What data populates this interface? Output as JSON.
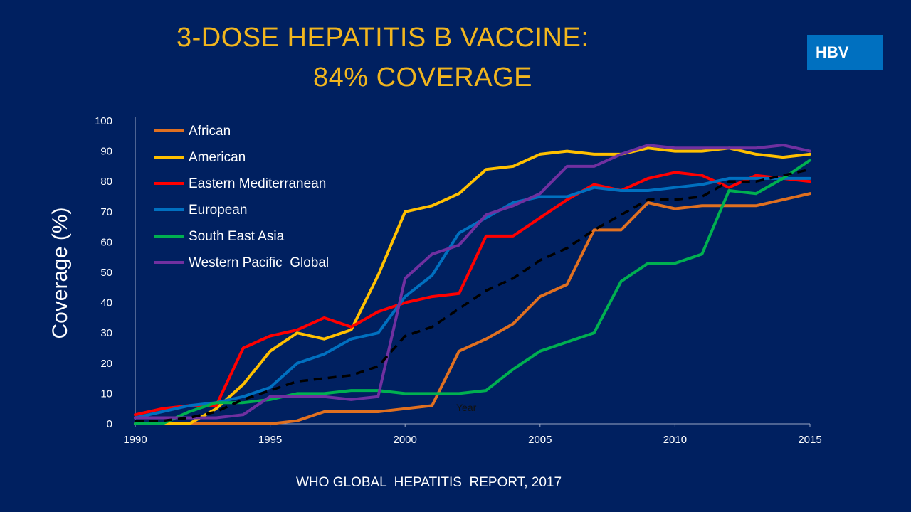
{
  "slide": {
    "title_line1": "3-DOSE HEPATITIS B VACCINE:",
    "title_line2": "84% COVERAGE",
    "badge": "HBV",
    "source": "WHO GLOBAL  HEPATITIS  REPORT, 2017"
  },
  "chart_data": {
    "type": "line",
    "ylabel": "Coverage (%)",
    "annotation": "Year",
    "xlim": [
      1990,
      2015
    ],
    "ylim": [
      0,
      100
    ],
    "x_ticks": [
      1990,
      1995,
      2000,
      2005,
      2010,
      2015
    ],
    "y_ticks": [
      0,
      10,
      20,
      30,
      40,
      50,
      60,
      70,
      80,
      90,
      100
    ],
    "grid": false,
    "legend_position": "top-left",
    "x": [
      1990,
      1991,
      1992,
      1993,
      1994,
      1995,
      1996,
      1997,
      1998,
      1999,
      2000,
      2001,
      2002,
      2003,
      2004,
      2005,
      2006,
      2007,
      2008,
      2009,
      2010,
      2011,
      2012,
      2013,
      2014,
      2015
    ],
    "series": [
      {
        "name": "African",
        "color": "#E07020",
        "dashed": false,
        "values": [
          0,
          0,
          0,
          0,
          0,
          0,
          1,
          4,
          4,
          4,
          5,
          6,
          24,
          28,
          33,
          42,
          46,
          64,
          64,
          73,
          71,
          72,
          72,
          72,
          74,
          76
        ]
      },
      {
        "name": "American",
        "color": "#FFC000",
        "dashed": false,
        "values": [
          0,
          0,
          0,
          5,
          13,
          24,
          30,
          28,
          31,
          49,
          70,
          72,
          76,
          84,
          85,
          89,
          90,
          89,
          89,
          91,
          90,
          90,
          91,
          89,
          88,
          89
        ]
      },
      {
        "name": "Eastern Mediterranean",
        "color": "#FF0000",
        "dashed": false,
        "values": [
          3,
          5,
          6,
          6,
          25,
          29,
          31,
          35,
          32,
          37,
          40,
          42,
          43,
          62,
          62,
          68,
          74,
          79,
          77,
          81,
          83,
          82,
          78,
          82,
          81,
          80
        ]
      },
      {
        "name": "European",
        "color": "#0070C0",
        "dashed": false,
        "values": [
          2,
          4,
          6,
          7,
          9,
          12,
          20,
          23,
          28,
          30,
          42,
          49,
          63,
          68,
          73,
          75,
          75,
          78,
          77,
          77,
          78,
          79,
          81,
          81,
          81,
          81
        ]
      },
      {
        "name": "South East Asia",
        "color": "#00B050",
        "dashed": false,
        "values": [
          0,
          0,
          4,
          7,
          7,
          8,
          10,
          10,
          11,
          11,
          10,
          10,
          10,
          11,
          18,
          24,
          27,
          30,
          47,
          53,
          53,
          56,
          77,
          76,
          81,
          87
        ]
      },
      {
        "name": "Western Pacific  Global",
        "color": "#7030A0",
        "dashed": false,
        "values": [
          2,
          2,
          2,
          2,
          3,
          9,
          9,
          9,
          8,
          9,
          48,
          56,
          59,
          69,
          72,
          76,
          85,
          85,
          89,
          92,
          91,
          91,
          91,
          91,
          92,
          90
        ]
      },
      {
        "color": "#000000",
        "dashed": true,
        "values": [
          1,
          1,
          2,
          4,
          8,
          11,
          14,
          15,
          16,
          19,
          29,
          32,
          38,
          44,
          48,
          54,
          58,
          64,
          69,
          74,
          74,
          75,
          80,
          80,
          82,
          84
        ]
      }
    ]
  },
  "icons": {
    "badge_shape": "blue-rectangle"
  }
}
